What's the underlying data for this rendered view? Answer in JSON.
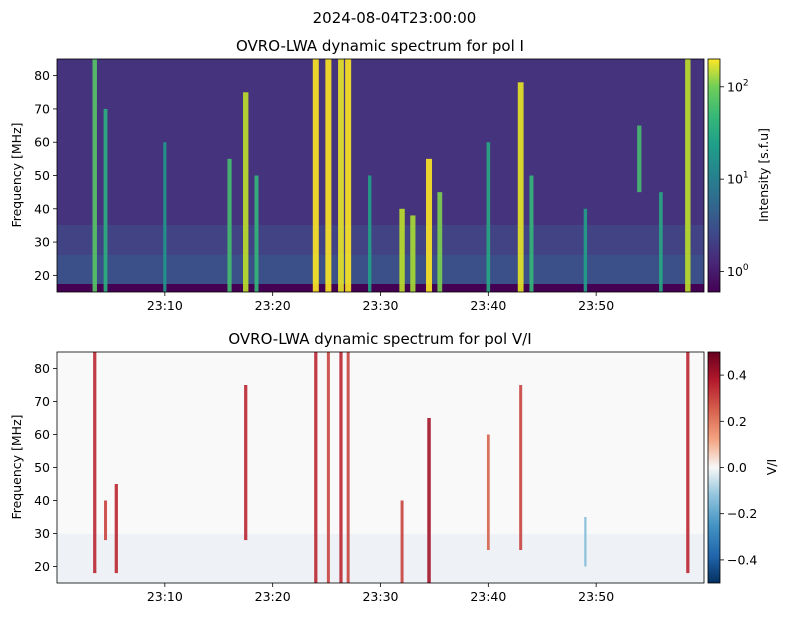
{
  "figure": {
    "suptitle": "2024-08-04T23:00:00"
  },
  "chart_data": [
    {
      "type": "heatmap",
      "title": "OVRO-LWA dynamic spectrum for pol I",
      "xlabel": "",
      "ylabel": "Frequency [MHz]",
      "xlim": [
        "23:00",
        "24:00"
      ],
      "ylim": [
        15,
        85
      ],
      "x_ticks": [
        "23:10",
        "23:20",
        "23:30",
        "23:40",
        "23:50"
      ],
      "y_ticks": [
        20,
        30,
        40,
        50,
        60,
        70,
        80
      ],
      "colorbar": {
        "label": "Intensity [s.f.u]",
        "scale": "log",
        "range": [
          0.6,
          200
        ],
        "ticks": [
          {
            "value": 1,
            "base": "10",
            "exp": "0"
          },
          {
            "value": 10,
            "base": "10",
            "exp": "1"
          },
          {
            "value": 100,
            "base": "10",
            "exp": "2"
          }
        ],
        "colormap": "viridis"
      },
      "features": [
        {
          "time": "23:03:30",
          "f_low": 15,
          "f_high": 85,
          "level": 0.6
        },
        {
          "time": "23:04:30",
          "f_low": 15,
          "f_high": 70,
          "level": 0.45
        },
        {
          "time": "23:10:00",
          "f_low": 15,
          "f_high": 60,
          "level": 0.3
        },
        {
          "time": "23:16:00",
          "f_low": 15,
          "f_high": 55,
          "level": 0.55
        },
        {
          "time": "23:17:30",
          "f_low": 15,
          "f_high": 75,
          "level": 0.85
        },
        {
          "time": "23:18:30",
          "f_low": 15,
          "f_high": 50,
          "level": 0.5
        },
        {
          "time": "23:24:00",
          "f_low": 15,
          "f_high": 85,
          "level": 1.0
        },
        {
          "time": "23:25:10",
          "f_low": 15,
          "f_high": 85,
          "level": 1.0
        },
        {
          "time": "23:26:20",
          "f_low": 15,
          "f_high": 85,
          "level": 0.95
        },
        {
          "time": "23:27:00",
          "f_low": 15,
          "f_high": 85,
          "level": 1.0
        },
        {
          "time": "23:29:00",
          "f_low": 15,
          "f_high": 50,
          "level": 0.35
        },
        {
          "time": "23:32:00",
          "f_low": 15,
          "f_high": 40,
          "level": 0.85
        },
        {
          "time": "23:33:00",
          "f_low": 15,
          "f_high": 38,
          "level": 0.8
        },
        {
          "time": "23:34:30",
          "f_low": 15,
          "f_high": 55,
          "level": 1.0
        },
        {
          "time": "23:35:30",
          "f_low": 15,
          "f_high": 45,
          "level": 0.7
        },
        {
          "time": "23:40:00",
          "f_low": 15,
          "f_high": 60,
          "level": 0.4
        },
        {
          "time": "23:43:00",
          "f_low": 15,
          "f_high": 78,
          "level": 0.95
        },
        {
          "time": "23:44:00",
          "f_low": 15,
          "f_high": 50,
          "level": 0.5
        },
        {
          "time": "23:49:00",
          "f_low": 15,
          "f_high": 40,
          "level": 0.35
        },
        {
          "time": "23:54:00",
          "f_low": 45,
          "f_high": 65,
          "level": 0.55
        },
        {
          "time": "23:56:00",
          "f_low": 15,
          "f_high": 45,
          "level": 0.4
        },
        {
          "time": "23:58:30",
          "f_low": 15,
          "f_high": 85,
          "level": 0.85
        }
      ]
    },
    {
      "type": "heatmap",
      "title": "OVRO-LWA dynamic spectrum for pol V/I",
      "xlabel": "",
      "ylabel": "Frequency [MHz]",
      "xlim": [
        "23:00",
        "24:00"
      ],
      "ylim": [
        15,
        85
      ],
      "x_ticks": [
        "23:10",
        "23:20",
        "23:30",
        "23:40",
        "23:50"
      ],
      "y_ticks": [
        20,
        30,
        40,
        50,
        60,
        70,
        80
      ],
      "colorbar": {
        "label": "V/I",
        "scale": "linear",
        "range": [
          -0.5,
          0.5
        ],
        "ticks": [
          0.4,
          0.2,
          0.0,
          -0.2,
          -0.4
        ],
        "tick_labels": [
          "0.4",
          "0.2",
          "0.0",
          "−0.2",
          "−0.4"
        ],
        "colormap": "RdBu_r"
      },
      "features": [
        {
          "time": "23:03:30",
          "f_low": 18,
          "f_high": 85,
          "level": 0.35
        },
        {
          "time": "23:04:30",
          "f_low": 28,
          "f_high": 40,
          "level": 0.3
        },
        {
          "time": "23:05:30",
          "f_low": 18,
          "f_high": 45,
          "level": 0.35
        },
        {
          "time": "23:17:30",
          "f_low": 28,
          "f_high": 75,
          "level": 0.35
        },
        {
          "time": "23:24:00",
          "f_low": 15,
          "f_high": 85,
          "level": 0.35
        },
        {
          "time": "23:25:10",
          "f_low": 15,
          "f_high": 85,
          "level": 0.3
        },
        {
          "time": "23:26:20",
          "f_low": 15,
          "f_high": 85,
          "level": 0.35
        },
        {
          "time": "23:27:00",
          "f_low": 15,
          "f_high": 85,
          "level": 0.3
        },
        {
          "time": "23:32:00",
          "f_low": 15,
          "f_high": 40,
          "level": 0.3
        },
        {
          "time": "23:34:30",
          "f_low": 15,
          "f_high": 65,
          "level": 0.4
        },
        {
          "time": "23:40:00",
          "f_low": 25,
          "f_high": 60,
          "level": 0.25
        },
        {
          "time": "23:43:00",
          "f_low": 25,
          "f_high": 75,
          "level": 0.3
        },
        {
          "time": "23:49:00",
          "f_low": 20,
          "f_high": 35,
          "level": -0.15
        },
        {
          "time": "23:58:30",
          "f_low": 18,
          "f_high": 85,
          "level": 0.35
        }
      ]
    }
  ]
}
